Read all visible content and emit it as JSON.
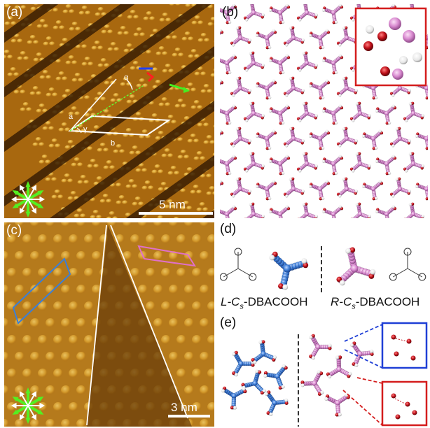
{
  "panels": {
    "a": {
      "label": "(a)",
      "scale": "5 nm",
      "lattice_a": "a",
      "lattice_b": "b",
      "angle_alpha": "α",
      "angle_gamma": "γ"
    },
    "b": {
      "label": "(b)"
    },
    "c": {
      "label": "(c)",
      "scale": "3 nm"
    },
    "d": {
      "label": "(d)",
      "left_prefix": "L-C",
      "left_sub": "s",
      "left_suffix": "-DBACOOH",
      "right_prefix": "R-C",
      "right_sub": "s",
      "right_suffix": "-DBACOOH"
    },
    "e": {
      "label": "(e)"
    }
  },
  "colors": {
    "stm_dark": "#3a1f04",
    "stm_mid": "#a8680f",
    "stm_bright": "#f3cf6b",
    "pink": "#d98ad0",
    "blue": "#3d7ed8",
    "oxygen": "#c0101a",
    "inset_red": "#d41d1d",
    "inset_blue": "#1f3fd6"
  }
}
